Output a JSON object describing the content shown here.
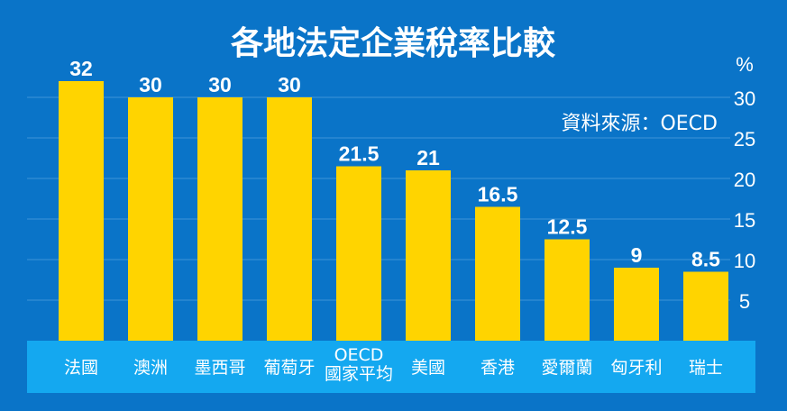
{
  "chart_data": {
    "type": "bar",
    "title": "各地法定企業稅率比較",
    "unit_label": "%",
    "source_note": "資料來源：OECD",
    "categories": [
      {
        "lines": [
          "法國"
        ]
      },
      {
        "lines": [
          "澳洲"
        ]
      },
      {
        "lines": [
          "墨西哥"
        ]
      },
      {
        "lines": [
          "葡萄牙"
        ]
      },
      {
        "lines": [
          "OECD",
          "國家平均"
        ]
      },
      {
        "lines": [
          "美國"
        ]
      },
      {
        "lines": [
          "香港"
        ]
      },
      {
        "lines": [
          "愛爾蘭"
        ]
      },
      {
        "lines": [
          "匈牙利"
        ]
      },
      {
        "lines": [
          "瑞士"
        ]
      }
    ],
    "values": [
      32,
      30,
      30,
      30,
      21.5,
      21,
      16.5,
      12.5,
      9,
      8.5
    ],
    "value_labels": [
      "32",
      "30",
      "30",
      "30",
      "21.5",
      "21",
      "16.5",
      "12.5",
      "9",
      "8.5"
    ],
    "ylim": [
      0,
      32
    ],
    "yticks": [
      5,
      10,
      15,
      20,
      25,
      30
    ],
    "ytick_labels": [
      "5",
      "10",
      "15",
      "20",
      "25",
      "30"
    ],
    "grid": true,
    "colors": {
      "background": "#0a74c8",
      "bar": "#ffd400",
      "category_band": "#14a8f0",
      "grid": "#3f95d8",
      "text": "#ffffff",
      "value_label": "#ffffff"
    }
  }
}
